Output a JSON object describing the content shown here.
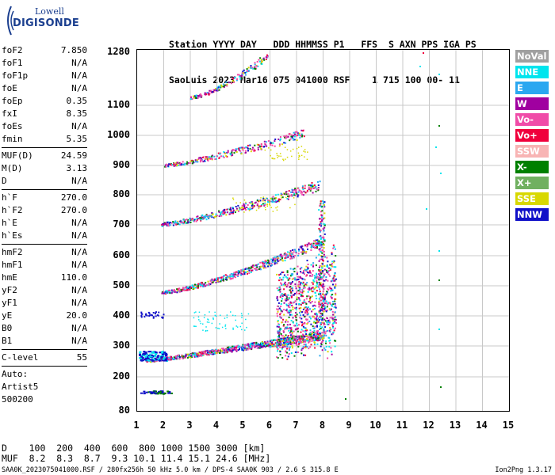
{
  "logo": {
    "top_text": "Lowell",
    "main_text": "DIGISONDE"
  },
  "header": {
    "line1": "Station YYYY DAY   DDD HHMMSS P1   FFS  S AXN PPS IGA PS",
    "line2": "SaoLuis 2023 Mar16 075 041000 RSF    1 715 100 00- 11"
  },
  "params": [
    {
      "name": "foF2",
      "value": "7.850"
    },
    {
      "name": "foF1",
      "value": "N/A"
    },
    {
      "name": "foF1p",
      "value": "N/A"
    },
    {
      "name": "foE",
      "value": "N/A"
    },
    {
      "name": "foEp",
      "value": "0.35"
    },
    {
      "name": "fxI",
      "value": "8.35"
    },
    {
      "name": "foEs",
      "value": "N/A"
    },
    {
      "name": "fmin",
      "value": "5.35"
    },
    {
      "sep": true
    },
    {
      "name": "MUF(D)",
      "value": "24.59"
    },
    {
      "name": "M(D)",
      "value": "3.13"
    },
    {
      "name": "D",
      "value": "N/A"
    },
    {
      "sep": true
    },
    {
      "name": "h`F",
      "value": "270.0"
    },
    {
      "name": "h`F2",
      "value": "270.0"
    },
    {
      "name": "h`E",
      "value": "N/A"
    },
    {
      "name": "h`Es",
      "value": "N/A"
    },
    {
      "sep": true
    },
    {
      "name": "hmF2",
      "value": "N/A"
    },
    {
      "name": "hmF1",
      "value": "N/A"
    },
    {
      "name": "hmE",
      "value": "110.0"
    },
    {
      "name": "yF2",
      "value": "N/A"
    },
    {
      "name": "yF1",
      "value": "N/A"
    },
    {
      "name": "yE",
      "value": "20.0"
    },
    {
      "name": "B0",
      "value": "N/A"
    },
    {
      "name": "B1",
      "value": "N/A"
    },
    {
      "sep": true
    },
    {
      "name": "C-level",
      "value": "55"
    },
    {
      "sep": true
    },
    {
      "text": "Auto:"
    },
    {
      "text": "Artist5"
    },
    {
      "text": "500200"
    }
  ],
  "legend": [
    {
      "label": "NoVal",
      "color": "#a0a0a0"
    },
    {
      "label": "NNE",
      "color": "#00e5ee"
    },
    {
      "label": "E",
      "color": "#2aa7f0"
    },
    {
      "label": "W",
      "color": "#a000a0"
    },
    {
      "label": "Vo-",
      "color": "#f04ca8"
    },
    {
      "label": "Vo+",
      "color": "#f0003c"
    },
    {
      "label": "SSW",
      "color": "#f8b4b4"
    },
    {
      "label": "X-",
      "color": "#008000"
    },
    {
      "label": "X+",
      "color": "#70b060"
    },
    {
      "label": "SSE",
      "color": "#d8d800"
    },
    {
      "label": "NNW",
      "color": "#1010c8"
    }
  ],
  "axes": {
    "y_ticks": [
      "1280",
      "1100",
      "1000",
      "900",
      "800",
      "700",
      "600",
      "500",
      "400",
      "300",
      "200",
      "80"
    ],
    "x_ticks": [
      "1",
      "2",
      "3",
      "4",
      "5",
      "6",
      "7",
      "8",
      "9",
      "10",
      "11",
      "12",
      "13",
      "14",
      "15"
    ]
  },
  "muf_table": {
    "d_line": "D    100  200  400  600  800 1000 1500 3000 [km]",
    "muf_line": "MUF  8.2  8.3  8.7  9.3 10.1 11.4 15.1 24.6 [MHz]"
  },
  "footer": {
    "left": "SAA0K_2023075041000.RSF / 280fx256h 50 kHz 5.0 km / DPS-4 SAA0K 903 / 2.6 S 315.8 E",
    "right": "Ion2Png 1.3.17"
  }
}
